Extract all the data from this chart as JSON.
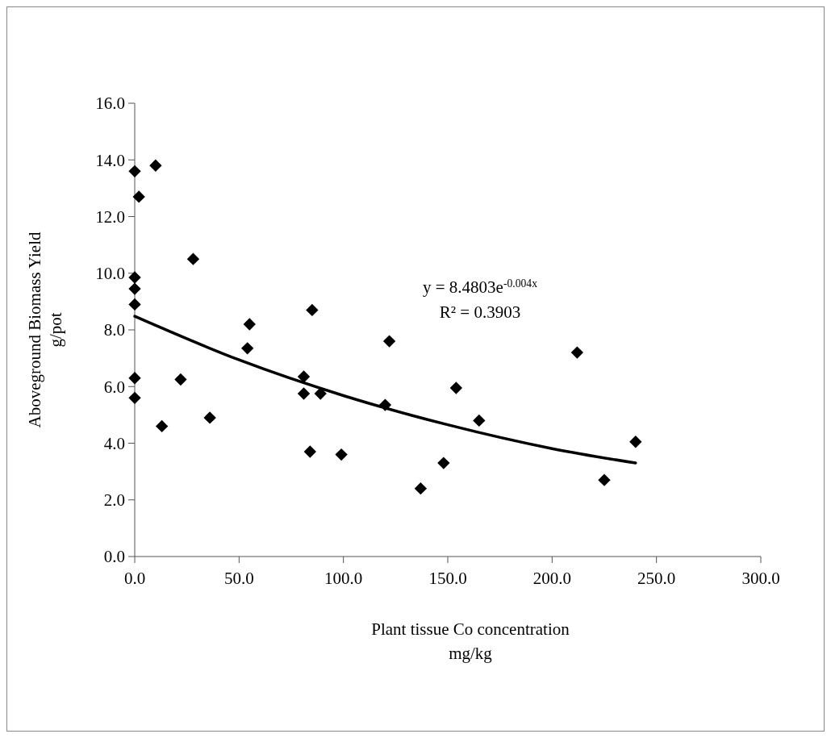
{
  "chart_data": {
    "type": "scatter",
    "xlabel": "Plant tissue Co concentration\nmg/kg",
    "ylabel": "Aboveground Biomass Yield\ng/pot",
    "xlim": [
      0,
      300
    ],
    "ylim": [
      0,
      16
    ],
    "xticks": [
      {
        "value": 0,
        "label": "0.0"
      },
      {
        "value": 50,
        "label": "50.0"
      },
      {
        "value": 100,
        "label": "100.0"
      },
      {
        "value": 150,
        "label": "150.0"
      },
      {
        "value": 200,
        "label": "200.0"
      },
      {
        "value": 250,
        "label": "250.0"
      },
      {
        "value": 300,
        "label": "300.0"
      }
    ],
    "yticks": [
      {
        "value": 0,
        "label": "0.0"
      },
      {
        "value": 2,
        "label": "2.0"
      },
      {
        "value": 4,
        "label": "4.0"
      },
      {
        "value": 6,
        "label": "6.0"
      },
      {
        "value": 8,
        "label": "8.0"
      },
      {
        "value": 10,
        "label": "10.0"
      },
      {
        "value": 12,
        "label": "12.0"
      },
      {
        "value": 14,
        "label": "14.0"
      },
      {
        "value": 16,
        "label": "16.0"
      }
    ],
    "marker": "diamond",
    "grid": false,
    "annotations": [
      "y = 8.4803e$^{-0.004x}$",
      "R² = 0.3903"
    ],
    "series": [
      {
        "type": "scatter",
        "color": "#000000",
        "x": [
          0,
          2,
          10,
          0,
          0,
          0,
          0,
          0,
          13,
          22,
          28,
          36,
          54,
          55,
          81,
          81,
          84,
          85,
          89,
          99,
          120,
          122,
          137,
          148,
          154,
          165,
          212,
          225,
          240
        ],
        "values": [
          13.6,
          12.7,
          13.8,
          9.85,
          9.45,
          8.9,
          6.3,
          5.6,
          4.6,
          6.25,
          10.5,
          4.9,
          7.35,
          8.2,
          6.35,
          5.75,
          3.7,
          8.7,
          5.75,
          3.6,
          5.35,
          7.6,
          2.4,
          3.3,
          5.95,
          4.8,
          7.2,
          2.7,
          4.05
        ]
      },
      {
        "type": "line",
        "marker": "none",
        "color": "#000000",
        "x": [
          0,
          50,
          100,
          150,
          200,
          240
        ],
        "values": [
          8.48,
          6.94,
          5.68,
          4.65,
          3.81,
          3.3
        ]
      }
    ]
  }
}
